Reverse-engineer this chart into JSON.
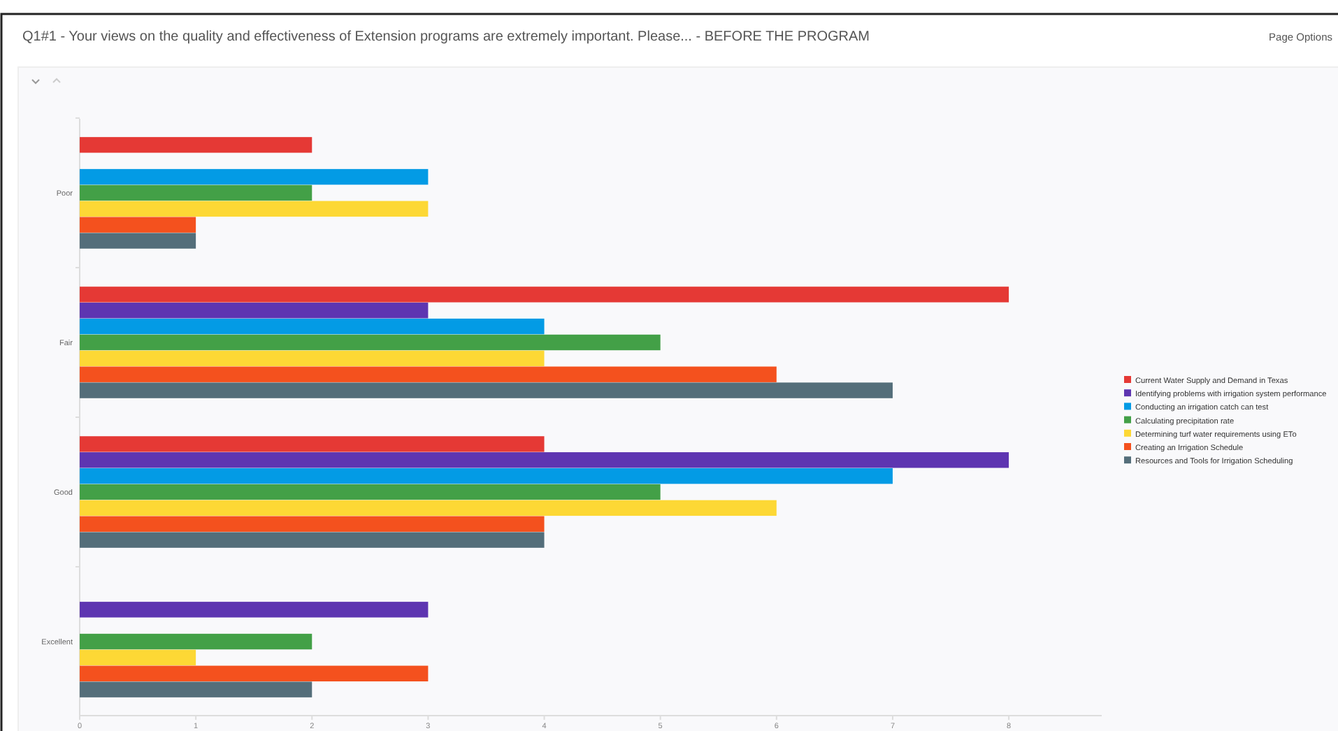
{
  "chart_data": {
    "type": "bar",
    "orientation": "horizontal",
    "title": "Q1#1 - Your views on the quality and effectiveness of Extension programs are extremely important. Please... - BEFORE THE PROGRAM",
    "annotations": [
      "Page Options"
    ],
    "categories": [
      "Poor",
      "Fair",
      "Good",
      "Excellent"
    ],
    "series": [
      {
        "name": "Current Water Supply and Demand in Texas",
        "color": "#e53935",
        "values": [
          2,
          8,
          4,
          null
        ]
      },
      {
        "name": "Identifying problems with irrigation system performance",
        "color": "#5e35b1",
        "values": [
          null,
          3,
          8,
          3
        ]
      },
      {
        "name": "Conducting an irrigation catch can test",
        "color": "#039be5",
        "values": [
          3,
          4,
          7,
          null
        ]
      },
      {
        "name": "Calculating precipitation rate",
        "color": "#43a047",
        "values": [
          2,
          5,
          5,
          2
        ]
      },
      {
        "name": "Determining turf water requirements using ETo",
        "color": "#fdd835",
        "values": [
          3,
          4,
          6,
          1
        ]
      },
      {
        "name": "Creating an Irrigation Schedule",
        "color": "#f4511e",
        "values": [
          1,
          6,
          4,
          3
        ]
      },
      {
        "name": "Resources and Tools for Irrigation Scheduling",
        "color": "#546e7a",
        "values": [
          1,
          7,
          4,
          2
        ]
      }
    ],
    "xlim": [
      0,
      8.8
    ],
    "xticks": [
      0,
      1,
      2,
      3,
      4,
      5,
      6,
      7,
      8
    ],
    "legend": "right",
    "grid": false
  }
}
